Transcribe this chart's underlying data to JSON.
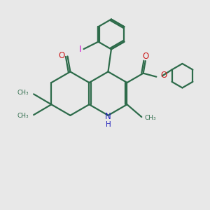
{
  "bg_color": "#e8e8e8",
  "bond_color": "#2d6b4a",
  "N_color": "#2222bb",
  "O_color": "#cc2020",
  "I_color": "#cc00cc",
  "line_width": 1.6,
  "figsize": [
    3.0,
    3.0
  ],
  "dpi": 100,
  "xlim": [
    0,
    10
  ],
  "ylim": [
    0,
    10
  ]
}
